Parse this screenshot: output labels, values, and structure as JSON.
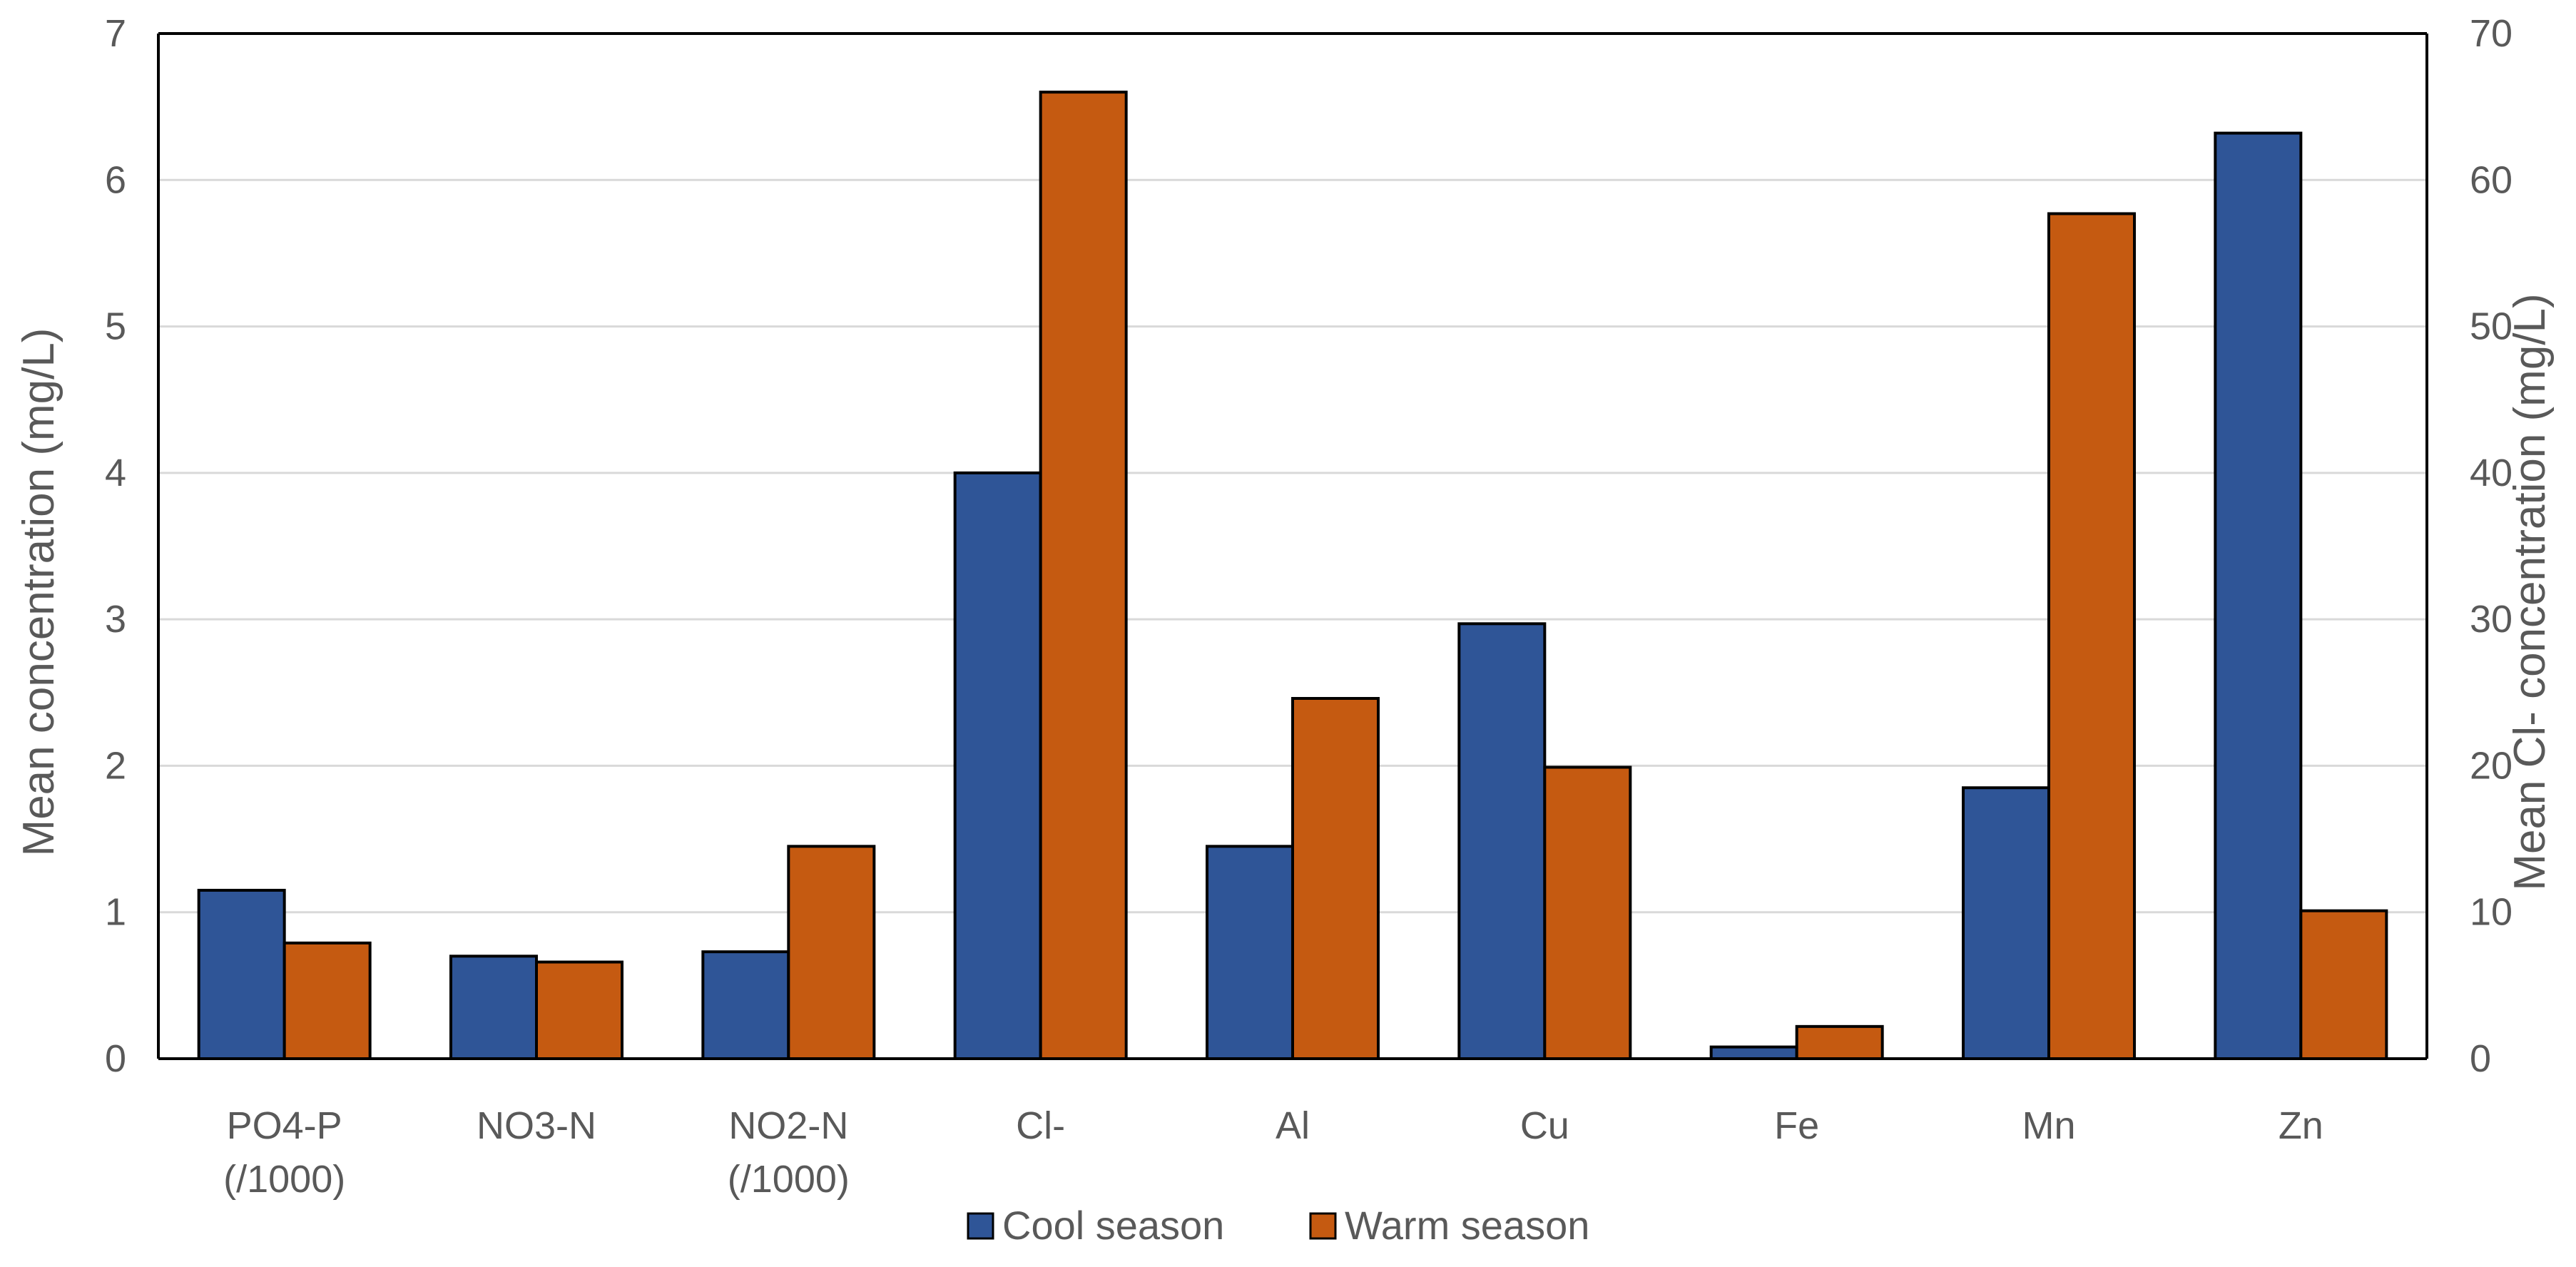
{
  "chart_data": {
    "type": "bar",
    "title": "",
    "categories": [
      [
        "PO4-P",
        "(/1000)"
      ],
      [
        "NO3-N"
      ],
      [
        "NO2-N",
        "(/1000)"
      ],
      [
        "Cl-"
      ],
      [
        "Al"
      ],
      [
        "Cu"
      ],
      [
        "Fe"
      ],
      [
        "Mn"
      ],
      [
        "Zn"
      ]
    ],
    "series": [
      {
        "name": "Cool season",
        "color": "#2F5597",
        "values": [
          1.15,
          0.7,
          0.73,
          40.0,
          1.45,
          2.97,
          0.08,
          1.85,
          6.32
        ]
      },
      {
        "name": "Warm season",
        "color": "#C55A11",
        "values": [
          0.79,
          0.66,
          1.45,
          66.0,
          2.46,
          1.99,
          0.22,
          5.77,
          1.01
        ]
      }
    ],
    "secondary_axis_category": "Cl-",
    "ylabel": "Mean concentration (mg/L)",
    "y2label": "Mean Cl- concentration (mg/L)",
    "ylim": [
      0,
      7
    ],
    "y2lim": [
      0,
      70
    ],
    "yticks": [
      "0",
      "1",
      "2",
      "3",
      "4",
      "5",
      "6",
      "7"
    ],
    "y2ticks": [
      "0",
      "10",
      "20",
      "30",
      "40",
      "50",
      "60",
      "70"
    ],
    "grid": true,
    "legend_position": "bottom-center"
  }
}
